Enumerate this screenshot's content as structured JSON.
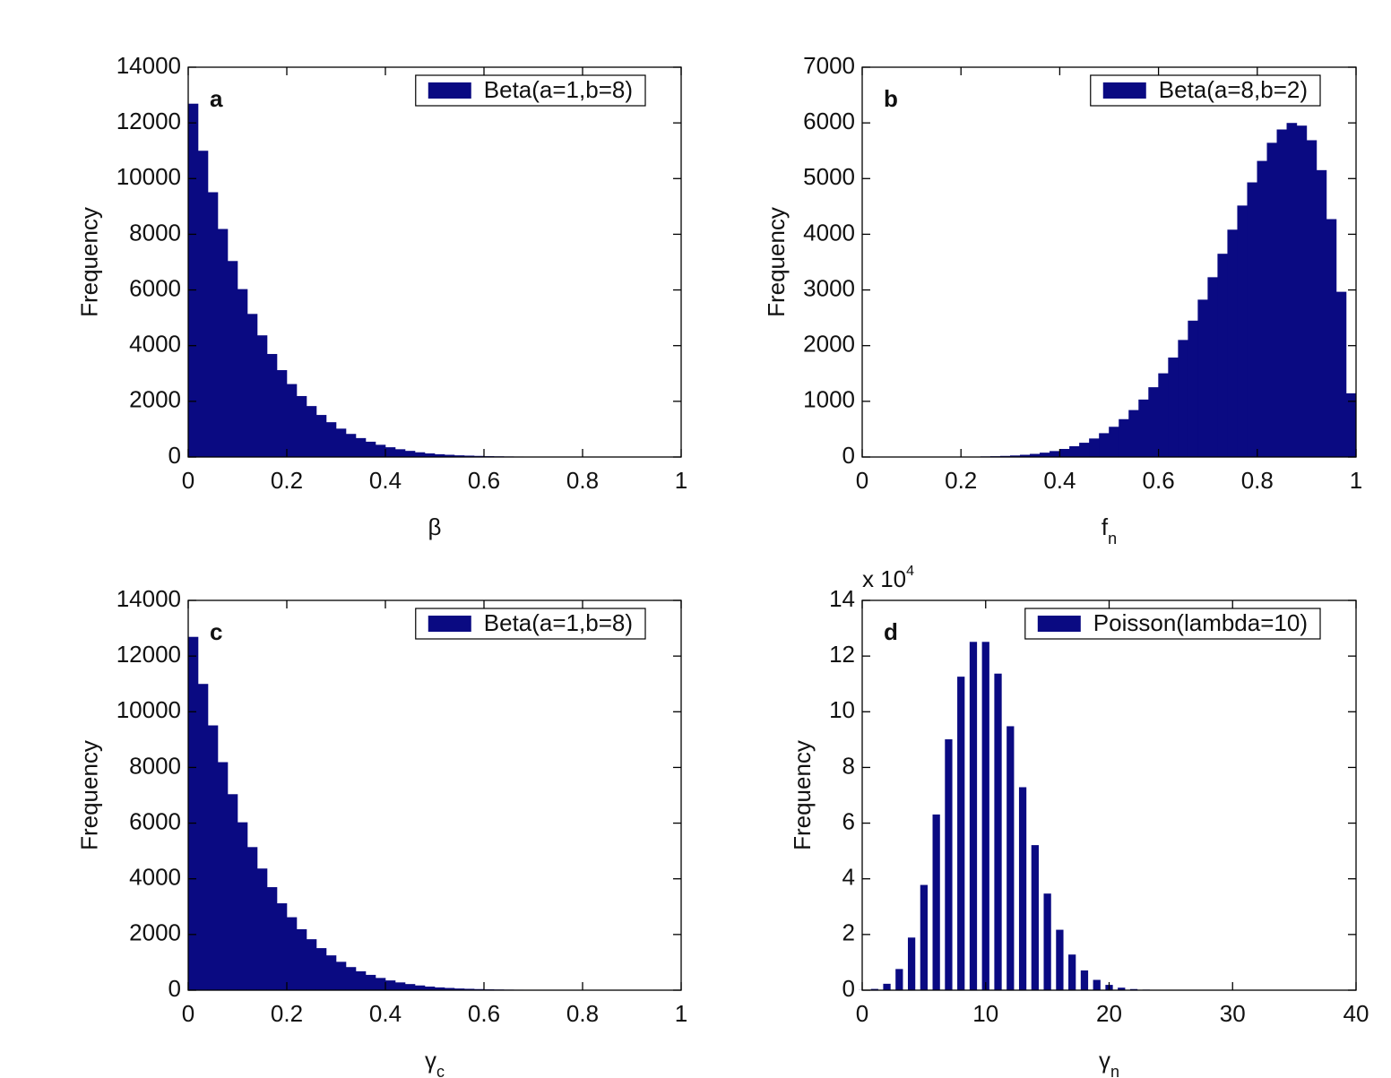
{
  "chart_data": [
    {
      "type": "histogram",
      "panel_label": "a",
      "xlabel": "β",
      "ylabel": "Frequency",
      "bins": [
        0,
        0.02,
        0.04,
        0.06,
        0.08,
        0.1,
        0.12,
        0.14,
        0.16,
        0.18,
        0.2,
        0.22,
        0.24,
        0.26,
        0.28,
        0.3,
        0.32,
        0.34,
        0.36,
        0.38,
        0.4,
        0.42,
        0.44,
        0.46,
        0.48,
        0.5,
        0.52,
        0.54,
        0.56,
        0.58,
        0.6,
        0.62,
        0.64,
        0.66,
        0.68,
        0.7,
        0.72,
        0.74,
        0.76,
        0.78,
        0.8,
        0.82,
        0.84,
        0.86,
        0.88,
        0.9,
        0.92,
        0.94,
        0.96,
        0.98,
        1
      ],
      "series": [
        {
          "name": "Beta(a=1,b=8)",
          "color": "#0a0a82",
          "values": [
            12680,
            10990,
            9500,
            8180,
            7030,
            6020,
            5130,
            4360,
            3690,
            3110,
            2610,
            2180,
            1820,
            1500,
            1240,
            1010,
            820,
            670,
            540,
            430,
            340,
            270,
            210,
            160,
            120,
            90,
            70,
            50,
            40,
            30,
            20,
            15,
            10,
            7,
            5,
            0,
            0,
            0,
            0,
            0,
            0,
            0,
            0,
            0,
            0,
            0,
            0,
            0,
            0,
            0
          ]
        }
      ],
      "xlim": [
        0,
        1
      ],
      "xticks": [
        0,
        0.2,
        0.4,
        0.6,
        0.8,
        1
      ],
      "ylim": [
        0,
        14000
      ],
      "yticks": [
        0,
        2000,
        4000,
        6000,
        8000,
        10000,
        12000,
        14000
      ],
      "legend": "upper right"
    },
    {
      "type": "histogram",
      "panel_label": "b",
      "xlabel": "f",
      "xlabel_sub": "n",
      "ylabel": "Frequency",
      "bins": [
        0,
        0.02,
        0.04,
        0.06,
        0.08,
        0.1,
        0.12,
        0.14,
        0.16,
        0.18,
        0.2,
        0.22,
        0.24,
        0.26,
        0.28,
        0.3,
        0.32,
        0.34,
        0.36,
        0.38,
        0.4,
        0.42,
        0.44,
        0.46,
        0.48,
        0.5,
        0.52,
        0.54,
        0.56,
        0.58,
        0.6,
        0.62,
        0.64,
        0.66,
        0.68,
        0.7,
        0.72,
        0.74,
        0.76,
        0.78,
        0.8,
        0.82,
        0.84,
        0.86,
        0.88,
        0.9,
        0.92,
        0.94,
        0.96,
        0.98,
        1
      ],
      "series": [
        {
          "name": "Beta(a=8,b=2)",
          "color": "#0a0a82",
          "values": [
            0,
            0,
            0,
            0,
            0,
            0,
            0,
            0,
            0,
            1,
            2,
            3,
            6,
            9,
            15,
            23,
            35,
            51,
            73,
            102,
            140,
            189,
            251,
            328,
            423,
            538,
            675,
            838,
            1027,
            1248,
            1498,
            1781,
            2097,
            2444,
            2821,
            3224,
            3645,
            4078,
            4511,
            4927,
            5312,
            5638,
            5877,
            5994,
            5946,
            5684,
            5147,
            4267,
            2962,
            1139
          ]
        }
      ],
      "xlim": [
        0,
        1
      ],
      "xticks": [
        0,
        0.2,
        0.4,
        0.6,
        0.8,
        1
      ],
      "ylim": [
        0,
        7000
      ],
      "yticks": [
        0,
        1000,
        2000,
        3000,
        4000,
        5000,
        6000,
        7000
      ],
      "legend": "upper right"
    },
    {
      "type": "histogram",
      "panel_label": "c",
      "xlabel": "γ",
      "xlabel_sub": "c",
      "ylabel": "Frequency",
      "bins": [
        0,
        0.02,
        0.04,
        0.06,
        0.08,
        0.1,
        0.12,
        0.14,
        0.16,
        0.18,
        0.2,
        0.22,
        0.24,
        0.26,
        0.28,
        0.3,
        0.32,
        0.34,
        0.36,
        0.38,
        0.4,
        0.42,
        0.44,
        0.46,
        0.48,
        0.5,
        0.52,
        0.54,
        0.56,
        0.58,
        0.6,
        0.62,
        0.64,
        0.66,
        0.68,
        0.7,
        0.72,
        0.74,
        0.76,
        0.78,
        0.8,
        0.82,
        0.84,
        0.86,
        0.88,
        0.9,
        0.92,
        0.94,
        0.96,
        0.98,
        1
      ],
      "series": [
        {
          "name": "Beta(a=1,b=8)",
          "color": "#0a0a82",
          "values": [
            12680,
            10990,
            9500,
            8180,
            7030,
            6020,
            5130,
            4360,
            3690,
            3110,
            2610,
            2180,
            1820,
            1500,
            1240,
            1010,
            820,
            670,
            540,
            430,
            340,
            270,
            210,
            160,
            120,
            90,
            70,
            50,
            40,
            30,
            20,
            15,
            10,
            7,
            5,
            0,
            0,
            0,
            0,
            0,
            0,
            0,
            0,
            0,
            0,
            0,
            0,
            0,
            0,
            0
          ]
        }
      ],
      "xlim": [
        0,
        1
      ],
      "xticks": [
        0,
        0.2,
        0.4,
        0.6,
        0.8,
        1
      ],
      "ylim": [
        0,
        14000
      ],
      "yticks": [
        0,
        2000,
        4000,
        6000,
        8000,
        10000,
        12000,
        14000
      ],
      "legend": "upper right"
    },
    {
      "type": "bar",
      "panel_label": "d",
      "xlabel": "γ",
      "xlabel_sub": "n",
      "ylabel": "Frequency",
      "ymult": "x 10",
      "ymult_exp": "4",
      "x": [
        0,
        1,
        2,
        3,
        4,
        5,
        6,
        7,
        8,
        9,
        10,
        11,
        12,
        13,
        14,
        15,
        16,
        17,
        18,
        19,
        20,
        21,
        22,
        23,
        24
      ],
      "series": [
        {
          "name": "Poisson(lambda=10)",
          "color": "#0a0a82",
          "values": [
            0.0045,
            0.045,
            0.23,
            0.76,
            1.89,
            3.78,
            6.31,
            9.01,
            11.26,
            12.51,
            12.51,
            11.37,
            9.48,
            7.29,
            5.21,
            3.47,
            2.17,
            1.28,
            0.71,
            0.37,
            0.19,
            0.09,
            0.04,
            0.02,
            0.01
          ]
        }
      ],
      "xlim": [
        0,
        40
      ],
      "xticks": [
        0,
        10,
        20,
        30,
        40
      ],
      "ylim": [
        0,
        14
      ],
      "yticks": [
        0,
        2,
        4,
        6,
        8,
        10,
        12,
        14
      ],
      "legend": "upper right"
    }
  ]
}
